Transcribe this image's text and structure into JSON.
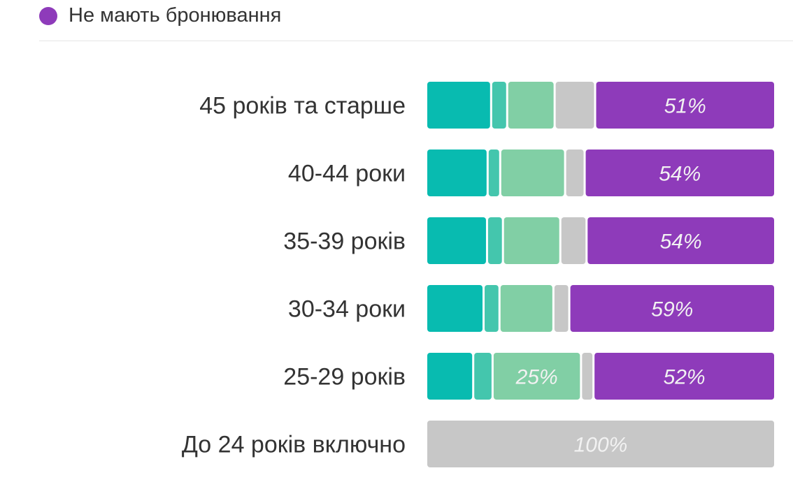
{
  "legend": {
    "label": "Не мають бронювання",
    "color": "#8e3bba"
  },
  "chart_data": {
    "type": "bar",
    "orientation": "horizontal",
    "stacked": true,
    "normalized": true,
    "grid": false,
    "legend_placement": "top-left",
    "categories": [
      "45 років та старше",
      "40-44 роки",
      "35-39 років",
      "30-34 роки",
      "25-29 років",
      "До 24 років включно"
    ],
    "segment_colors": [
      "#08bbb0",
      "#44c6ad",
      "#81cfa5",
      "#c7c7c7",
      "#8e3bba"
    ],
    "segments": [
      [
        18,
        4,
        13,
        11,
        51
      ],
      [
        17,
        3,
        18,
        5,
        54
      ],
      [
        17,
        4,
        16,
        7,
        54
      ],
      [
        16,
        4,
        15,
        4,
        59
      ],
      [
        13,
        5,
        25,
        3,
        52
      ],
      [
        0,
        0,
        0,
        100,
        0
      ]
    ],
    "labels": [
      [
        null,
        null,
        null,
        null,
        "51%"
      ],
      [
        null,
        null,
        null,
        null,
        "54%"
      ],
      [
        null,
        null,
        null,
        null,
        "54%"
      ],
      [
        null,
        null,
        null,
        null,
        "59%"
      ],
      [
        null,
        null,
        "25%",
        null,
        "52%"
      ],
      [
        null,
        null,
        null,
        "100%",
        null
      ]
    ]
  }
}
